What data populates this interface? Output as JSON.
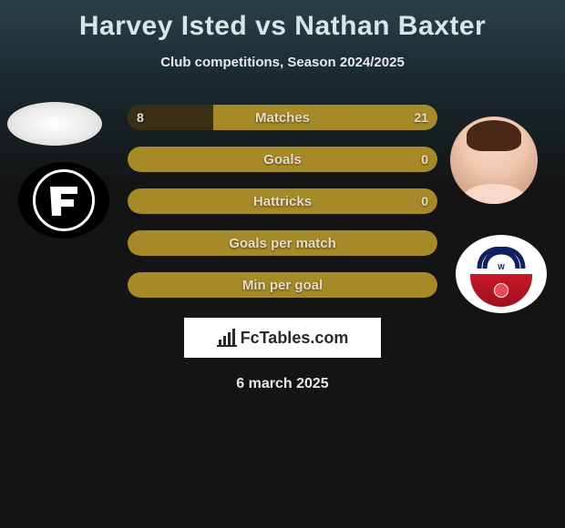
{
  "title": "Harvey Isted vs Nathan Baxter",
  "subtitle": "Club competitions, Season 2024/2025",
  "date": "6 march 2025",
  "logo_text": "FcTables.com",
  "colors": {
    "bar_olive": "#a68a28",
    "bar_olive_light": "#b89838",
    "bar_dark": "#3a3018",
    "text_cream": "#e8dcc8"
  },
  "stats": [
    {
      "label": "Matches",
      "left_val": "8",
      "right_val": "21",
      "left_pct": 27.6,
      "right_pct": 72.4,
      "left_color": "#3a3018",
      "right_color": "#a68a28",
      "bg_color": "#a68a28"
    },
    {
      "label": "Goals",
      "left_val": "",
      "right_val": "0",
      "left_pct": 0,
      "right_pct": 0,
      "left_color": "#a68a28",
      "right_color": "#a68a28",
      "bg_color": "#a68a28"
    },
    {
      "label": "Hattricks",
      "left_val": "",
      "right_val": "0",
      "left_pct": 0,
      "right_pct": 0,
      "left_color": "#a68a28",
      "right_color": "#a68a28",
      "bg_color": "#a68a28"
    },
    {
      "label": "Goals per match",
      "left_val": "",
      "right_val": "",
      "left_pct": 0,
      "right_pct": 0,
      "left_color": "#a68a28",
      "right_color": "#a68a28",
      "bg_color": "#a68a28"
    },
    {
      "label": "Min per goal",
      "left_val": "",
      "right_val": "",
      "left_pct": 0,
      "right_pct": 0,
      "left_color": "#a68a28",
      "right_color": "#a68a28",
      "bg_color": "#a68a28"
    }
  ]
}
